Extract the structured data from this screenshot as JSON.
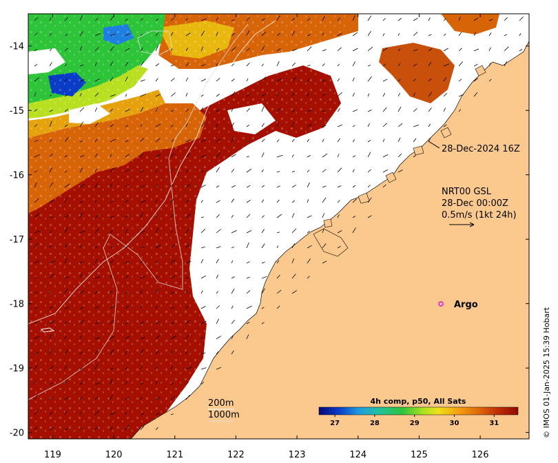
{
  "map": {
    "lon_range": [
      118.6,
      126.8
    ],
    "lat_range": [
      -20.1,
      -13.5
    ],
    "x_ticks": [
      "119",
      "120",
      "121",
      "122",
      "123",
      "124",
      "125",
      "126"
    ],
    "y_ticks": [
      "-14",
      "-15",
      "-16",
      "-17",
      "-18",
      "-19",
      "-20"
    ],
    "x_tick_values": [
      119,
      120,
      121,
      122,
      123,
      124,
      125,
      126
    ],
    "y_tick_values": [
      -14,
      -15,
      -16,
      -17,
      -18,
      -19,
      -20
    ],
    "colors": {
      "land": "#fbc98e",
      "cloud": "#ffffff",
      "sst_hot": "#a50f00",
      "sst_warm": "#d86408",
      "sst_mid": "#e6c60c",
      "sst_cool": "#24c23a",
      "sst_cold": "#0a3cc8"
    }
  },
  "annotations": {
    "timestamp": "28-Dec-2024 16Z",
    "current_title": "NRT00 GSL",
    "current_time": "28-Dec 00:00Z",
    "current_scale": "0.5m/s (1kt 24h)",
    "argo_label": "Argo",
    "contour_200": "200m",
    "contour_1000": "1000m"
  },
  "colorbar": {
    "title": "4h comp, p50, All Sats",
    "ticks": [
      "27",
      "28",
      "29",
      "30",
      "31"
    ],
    "tick_values": [
      27,
      28,
      29,
      30,
      31
    ],
    "range": [
      26.6,
      31.6
    ],
    "gradient": [
      "#08087a",
      "#0a3cc8",
      "#1f9be0",
      "#22c1a0",
      "#2ec43a",
      "#a8e21e",
      "#f0e01a",
      "#f4a010",
      "#e06a0a",
      "#c02e04",
      "#8e0a00"
    ]
  },
  "credit": "© IMOS 01-Jan-2025 15:39 Hobart"
}
